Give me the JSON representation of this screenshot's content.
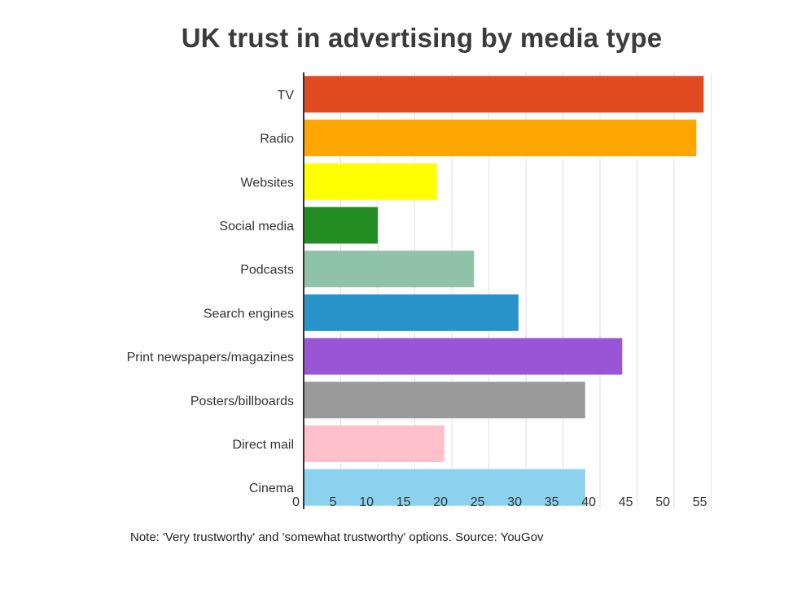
{
  "chart_data": {
    "type": "bar",
    "orientation": "horizontal",
    "title": "UK trust in advertising by media type",
    "note": "Note: 'Very trustworthy' and 'somewhat trustworthy' options. Source: YouGov",
    "categories": [
      "TV",
      "Radio",
      "Websites",
      "Social media",
      "Podcasts",
      "Search engines",
      "Print newspapers/magazines",
      "Posters/billboards",
      "Direct mail",
      "Cinema"
    ],
    "values": [
      54,
      53,
      18,
      10,
      23,
      29,
      43,
      38,
      19,
      38
    ],
    "colors": [
      "#e14a1f",
      "#ffa500",
      "#ffff00",
      "#228b22",
      "#8fc2a7",
      "#2893c9",
      "#9a55d6",
      "#9a9a9a",
      "#ffc0cb",
      "#8ad2ee"
    ],
    "xticks": [
      0,
      5,
      10,
      15,
      20,
      25,
      30,
      35,
      40,
      45,
      50,
      55
    ],
    "xlim": [
      0,
      55
    ],
    "grid": true,
    "legend": "none"
  }
}
